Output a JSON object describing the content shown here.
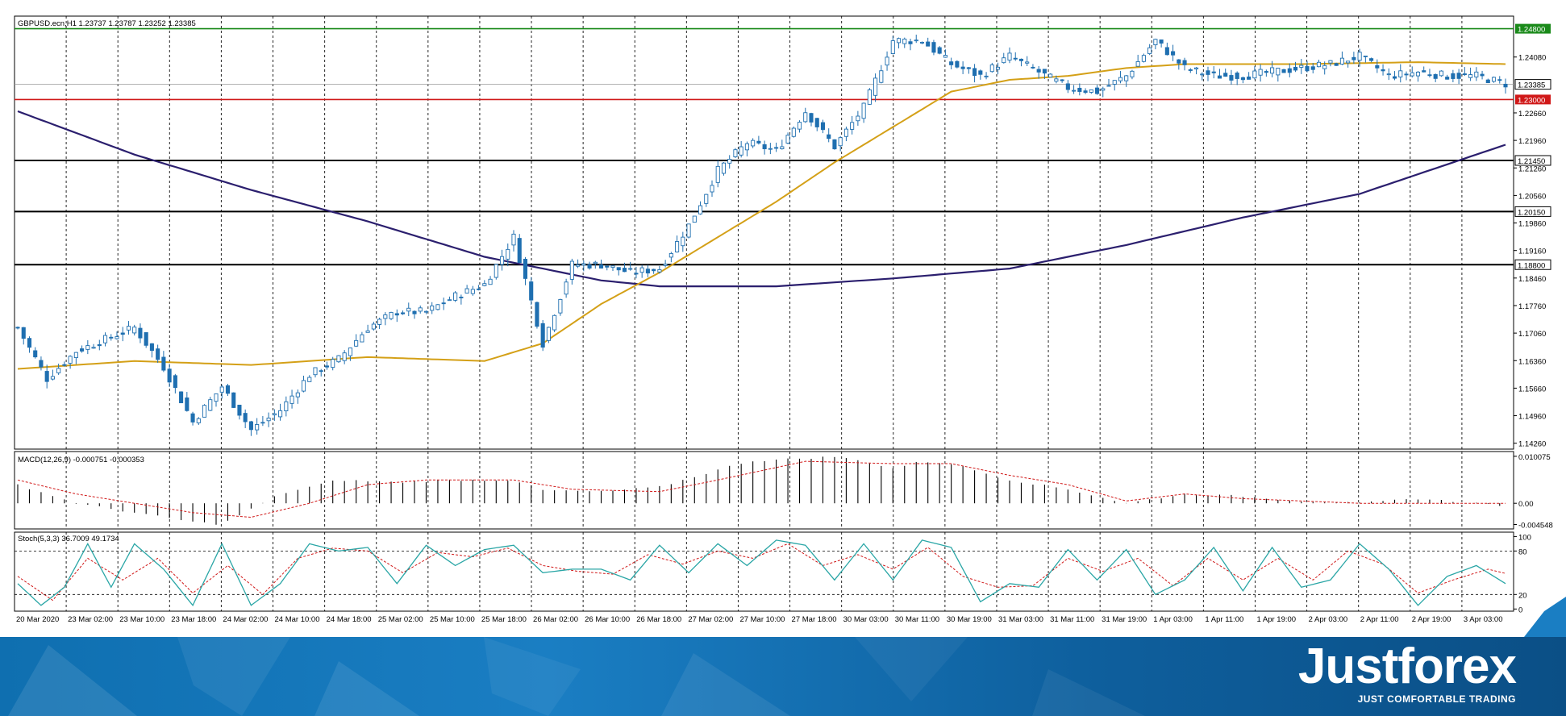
{
  "colors": {
    "resistance_line": "#1a8a1a",
    "support_line": "#d01818",
    "level_line": "#000000",
    "ma_fast": "#d4a017",
    "ma_slow": "#2b1f6e",
    "candle": "#1f6fb0",
    "macd_signal": "#d01818",
    "stoch_main": "#2aa6a6",
    "stoch_signal": "#d01818",
    "brand": "#1a7ec3"
  },
  "chart_data": [
    {
      "type": "candlestick",
      "title": "GBPUSD.ecn,H1  1.23737 1.23787 1.23252 1.23385",
      "x_labels": [
        "20 Mar 2020",
        "23 Mar 02:00",
        "23 Mar 10:00",
        "23 Mar 18:00",
        "24 Mar 02:00",
        "24 Mar 10:00",
        "24 Mar 18:00",
        "25 Mar 02:00",
        "25 Mar 10:00",
        "25 Mar 18:00",
        "26 Mar 02:00",
        "26 Mar 10:00",
        "26 Mar 18:00",
        "27 Mar 02:00",
        "27 Mar 10:00",
        "27 Mar 18:00",
        "30 Mar 03:00",
        "30 Mar 11:00",
        "30 Mar 19:00",
        "31 Mar 03:00",
        "31 Mar 11:00",
        "31 Mar 19:00",
        "1 Apr 03:00",
        "1 Apr 11:00",
        "1 Apr 19:00",
        "2 Apr 03:00",
        "2 Apr 11:00",
        "2 Apr 19:00",
        "3 Apr 03:00"
      ],
      "y_ticks": [
        "1.24080",
        "1.22660",
        "1.21960",
        "1.21260",
        "1.20560",
        "1.19860",
        "1.19160",
        "1.18460",
        "1.17760",
        "1.17060",
        "1.16360",
        "1.15660",
        "1.14960",
        "1.14260"
      ],
      "ylim": [
        1.1411,
        1.2512
      ],
      "current_price": "1.23385",
      "horizontal_levels": [
        {
          "label": "1.24800",
          "kind": "resistance"
        },
        {
          "label": "1.23000",
          "kind": "support"
        },
        {
          "label": "1.21450",
          "kind": "level"
        },
        {
          "label": "1.20150",
          "kind": "level"
        },
        {
          "label": "1.18800",
          "kind": "level"
        }
      ],
      "close_path": [
        [
          0,
          1.172
        ],
        [
          5,
          1.159
        ],
        [
          10,
          1.166
        ],
        [
          15,
          1.169
        ],
        [
          20,
          1.172
        ],
        [
          25,
          1.162
        ],
        [
          30,
          1.148
        ],
        [
          35,
          1.157
        ],
        [
          40,
          1.146
        ],
        [
          45,
          1.151
        ],
        [
          50,
          1.16
        ],
        [
          55,
          1.164
        ],
        [
          60,
          1.172
        ],
        [
          65,
          1.176
        ],
        [
          70,
          1.176
        ],
        [
          75,
          1.18
        ],
        [
          80,
          1.183
        ],
        [
          85,
          1.195
        ],
        [
          90,
          1.168
        ],
        [
          95,
          1.188
        ],
        [
          100,
          1.188
        ],
        [
          105,
          1.186
        ],
        [
          110,
          1.187
        ],
        [
          115,
          1.198
        ],
        [
          120,
          1.212
        ],
        [
          125,
          1.219
        ],
        [
          130,
          1.217
        ],
        [
          135,
          1.227
        ],
        [
          140,
          1.218
        ],
        [
          145,
          1.228
        ],
        [
          150,
          1.245
        ],
        [
          155,
          1.245
        ],
        [
          160,
          1.239
        ],
        [
          165,
          1.236
        ],
        [
          170,
          1.241
        ],
        [
          175,
          1.237
        ],
        [
          180,
          1.233
        ],
        [
          185,
          1.232
        ],
        [
          190,
          1.236
        ],
        [
          195,
          1.245
        ],
        [
          200,
          1.238
        ],
        [
          205,
          1.236
        ],
        [
          210,
          1.236
        ],
        [
          215,
          1.237
        ],
        [
          220,
          1.238
        ],
        [
          225,
          1.239
        ],
        [
          230,
          1.241
        ],
        [
          235,
          1.236
        ],
        [
          240,
          1.237
        ],
        [
          245,
          1.236
        ],
        [
          250,
          1.236
        ],
        [
          255,
          1.234
        ]
      ],
      "ma_fast_path": [
        [
          0,
          1.1615
        ],
        [
          20,
          1.1635
        ],
        [
          40,
          1.1625
        ],
        [
          60,
          1.1645
        ],
        [
          80,
          1.1635
        ],
        [
          90,
          1.168
        ],
        [
          100,
          1.178
        ],
        [
          110,
          1.186
        ],
        [
          120,
          1.195
        ],
        [
          130,
          1.204
        ],
        [
          140,
          1.214
        ],
        [
          150,
          1.223
        ],
        [
          160,
          1.232
        ],
        [
          170,
          1.235
        ],
        [
          180,
          1.236
        ],
        [
          190,
          1.238
        ],
        [
          200,
          1.239
        ],
        [
          220,
          1.239
        ],
        [
          240,
          1.2395
        ],
        [
          255,
          1.239
        ]
      ],
      "ma_slow_path": [
        [
          0,
          1.227
        ],
        [
          20,
          1.216
        ],
        [
          40,
          1.207
        ],
        [
          60,
          1.199
        ],
        [
          80,
          1.19
        ],
        [
          100,
          1.184
        ],
        [
          110,
          1.1825
        ],
        [
          130,
          1.1825
        ],
        [
          150,
          1.1845
        ],
        [
          170,
          1.187
        ],
        [
          190,
          1.193
        ],
        [
          210,
          1.2
        ],
        [
          230,
          1.206
        ],
        [
          255,
          1.2185
        ]
      ]
    },
    {
      "type": "histogram",
      "title": "MACD(12,26,9) -0.000751 -0.000353",
      "y_ticks": [
        "0.010075",
        "0.00",
        "-0.004548"
      ],
      "ylim": [
        -0.0055,
        0.0111
      ],
      "hist_path": [
        [
          0,
          0.004
        ],
        [
          10,
          0.0
        ],
        [
          20,
          -0.002
        ],
        [
          30,
          -0.004
        ],
        [
          35,
          -0.0045
        ],
        [
          45,
          0.002
        ],
        [
          55,
          0.005
        ],
        [
          65,
          0.0045
        ],
        [
          75,
          0.005
        ],
        [
          85,
          0.005
        ],
        [
          90,
          0.0028
        ],
        [
          100,
          0.0025
        ],
        [
          110,
          0.0035
        ],
        [
          125,
          0.009
        ],
        [
          140,
          0.01
        ],
        [
          145,
          0.009
        ],
        [
          150,
          0.0075
        ],
        [
          155,
          0.009
        ],
        [
          160,
          0.0085
        ],
        [
          170,
          0.005
        ],
        [
          180,
          0.003
        ],
        [
          190,
          0.0
        ],
        [
          200,
          0.002
        ],
        [
          210,
          0.0015
        ],
        [
          220,
          0.0005
        ],
        [
          230,
          0.0
        ],
        [
          240,
          0.001
        ],
        [
          250,
          0.0
        ],
        [
          255,
          -0.0005
        ]
      ],
      "signal_path": [
        [
          0,
          0.005
        ],
        [
          10,
          0.002
        ],
        [
          20,
          0.0
        ],
        [
          30,
          -0.002
        ],
        [
          40,
          -0.003
        ],
        [
          50,
          0.0
        ],
        [
          60,
          0.004
        ],
        [
          70,
          0.005
        ],
        [
          85,
          0.005
        ],
        [
          95,
          0.003
        ],
        [
          110,
          0.0025
        ],
        [
          120,
          0.005
        ],
        [
          135,
          0.009
        ],
        [
          150,
          0.0085
        ],
        [
          160,
          0.0085
        ],
        [
          170,
          0.006
        ],
        [
          180,
          0.004
        ],
        [
          190,
          0.0005
        ],
        [
          200,
          0.002
        ],
        [
          210,
          0.001
        ],
        [
          230,
          0.0
        ],
        [
          245,
          0.0
        ],
        [
          255,
          0.0
        ]
      ]
    },
    {
      "type": "line",
      "title": "Stoch(5,3,3) 36.7009 49.1734",
      "y_ticks": [
        "100",
        "80",
        "20",
        "0"
      ],
      "ylim": [
        -3,
        106
      ],
      "levels": [
        80,
        20
      ],
      "main_path": [
        [
          0,
          35
        ],
        [
          4,
          5
        ],
        [
          8,
          30
        ],
        [
          12,
          90
        ],
        [
          16,
          30
        ],
        [
          20,
          90
        ],
        [
          25,
          55
        ],
        [
          30,
          5
        ],
        [
          35,
          90
        ],
        [
          40,
          5
        ],
        [
          45,
          35
        ],
        [
          50,
          90
        ],
        [
          55,
          80
        ],
        [
          60,
          85
        ],
        [
          65,
          35
        ],
        [
          70,
          88
        ],
        [
          75,
          60
        ],
        [
          80,
          82
        ],
        [
          85,
          88
        ],
        [
          90,
          50
        ],
        [
          95,
          55
        ],
        [
          100,
          55
        ],
        [
          105,
          40
        ],
        [
          110,
          88
        ],
        [
          115,
          50
        ],
        [
          120,
          90
        ],
        [
          125,
          60
        ],
        [
          130,
          95
        ],
        [
          135,
          88
        ],
        [
          140,
          40
        ],
        [
          145,
          90
        ],
        [
          150,
          40
        ],
        [
          155,
          95
        ],
        [
          160,
          85
        ],
        [
          165,
          10
        ],
        [
          170,
          35
        ],
        [
          175,
          30
        ],
        [
          180,
          82
        ],
        [
          185,
          40
        ],
        [
          190,
          82
        ],
        [
          195,
          20
        ],
        [
          200,
          40
        ],
        [
          205,
          85
        ],
        [
          210,
          25
        ],
        [
          215,
          85
        ],
        [
          220,
          30
        ],
        [
          225,
          40
        ],
        [
          230,
          90
        ],
        [
          235,
          55
        ],
        [
          240,
          5
        ],
        [
          245,
          45
        ],
        [
          250,
          60
        ],
        [
          255,
          35
        ]
      ],
      "signal_path": [
        [
          0,
          45
        ],
        [
          6,
          12
        ],
        [
          12,
          70
        ],
        [
          18,
          40
        ],
        [
          24,
          70
        ],
        [
          30,
          22
        ],
        [
          36,
          60
        ],
        [
          42,
          20
        ],
        [
          48,
          70
        ],
        [
          54,
          84
        ],
        [
          60,
          80
        ],
        [
          66,
          50
        ],
        [
          72,
          78
        ],
        [
          78,
          72
        ],
        [
          84,
          84
        ],
        [
          90,
          60
        ],
        [
          96,
          52
        ],
        [
          102,
          48
        ],
        [
          108,
          75
        ],
        [
          114,
          62
        ],
        [
          120,
          80
        ],
        [
          126,
          70
        ],
        [
          132,
          90
        ],
        [
          138,
          60
        ],
        [
          144,
          75
        ],
        [
          150,
          55
        ],
        [
          156,
          85
        ],
        [
          162,
          45
        ],
        [
          168,
          30
        ],
        [
          174,
          32
        ],
        [
          180,
          70
        ],
        [
          186,
          52
        ],
        [
          192,
          70
        ],
        [
          198,
          32
        ],
        [
          204,
          70
        ],
        [
          210,
          40
        ],
        [
          216,
          70
        ],
        [
          222,
          40
        ],
        [
          228,
          80
        ],
        [
          234,
          62
        ],
        [
          240,
          22
        ],
        [
          246,
          40
        ],
        [
          252,
          55
        ],
        [
          255,
          49
        ]
      ]
    }
  ],
  "branding": {
    "logo": "Justforex",
    "tagline": "JUST COMFORTABLE TRADING"
  }
}
